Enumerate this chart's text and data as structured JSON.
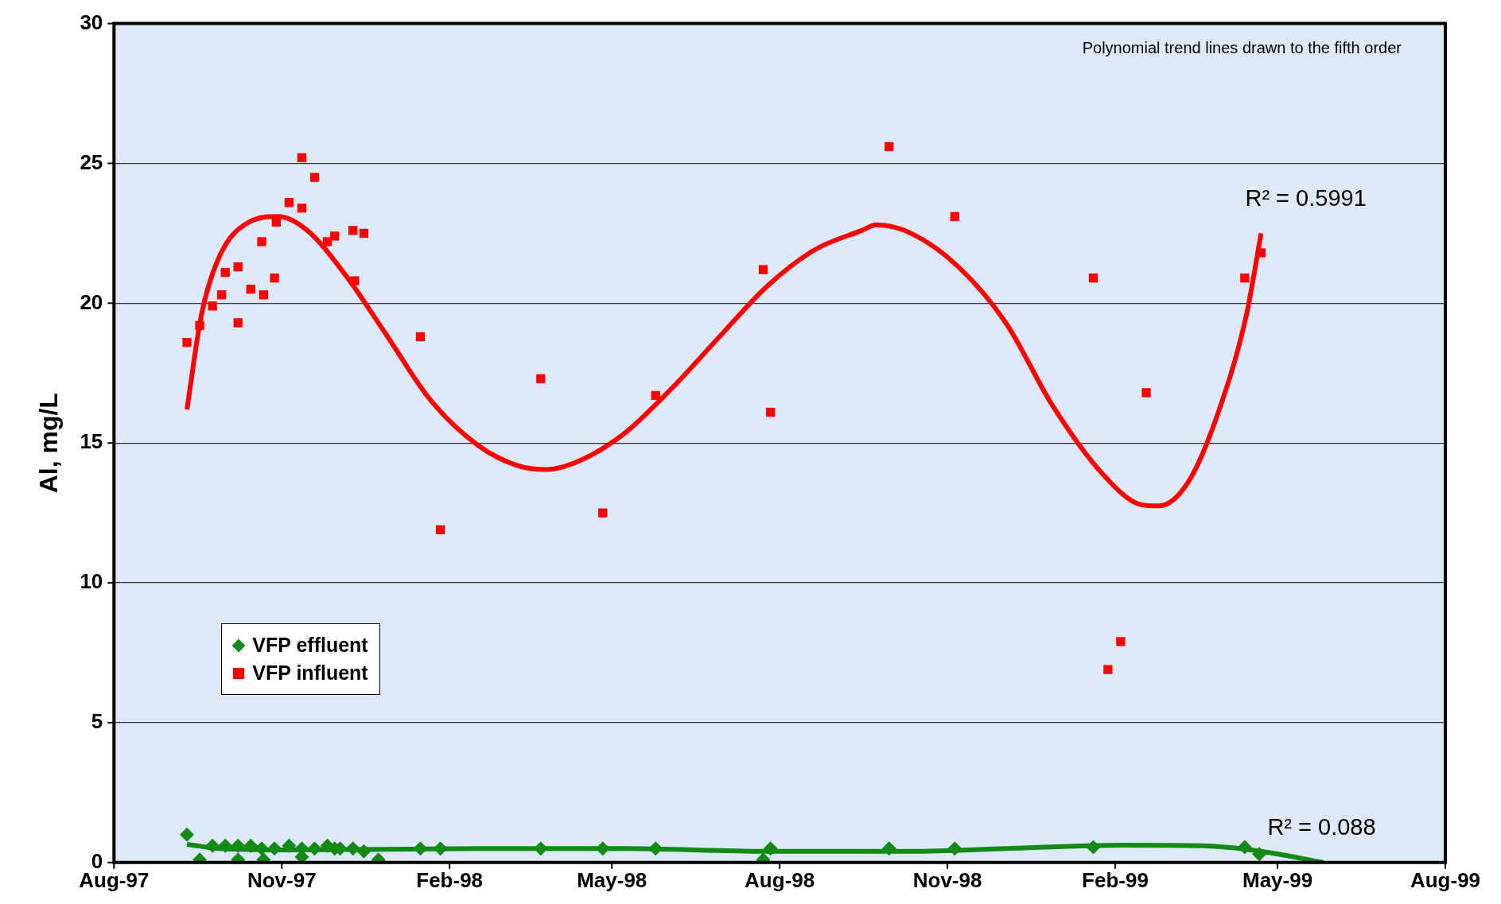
{
  "chart_data": {
    "type": "scatter",
    "ylabel": "Al, mg/L",
    "annotations": [
      "Polynomial trend lines drawn to the fifth order",
      "R² = 0.5991",
      "R² = 0.088"
    ],
    "xlim": [
      "1997-08-01",
      "1999-08-01"
    ],
    "xticks": [
      {
        "value": "1997-08-01",
        "label": "Aug-97"
      },
      {
        "value": "1997-11-01",
        "label": "Nov-97"
      },
      {
        "value": "1998-02-01",
        "label": "Feb-98"
      },
      {
        "value": "1998-05-01",
        "label": "May-98"
      },
      {
        "value": "1998-08-01",
        "label": "Aug-98"
      },
      {
        "value": "1998-11-01",
        "label": "Nov-98"
      },
      {
        "value": "1999-02-01",
        "label": "Feb-99"
      },
      {
        "value": "1999-05-01",
        "label": "May-99"
      },
      {
        "value": "1999-08-01",
        "label": "Aug-99"
      }
    ],
    "ylim": [
      0,
      30
    ],
    "yticks": [
      0,
      5,
      10,
      15,
      20,
      25,
      30
    ],
    "grid": "y",
    "legend": "left",
    "series": [
      {
        "name": "VFP effluent",
        "marker": "diamond",
        "color": "#138a13",
        "x": [
          "1997-09-10",
          "1997-09-17",
          "1997-09-24",
          "1997-09-29",
          "1997-10-01",
          "1997-10-08",
          "1997-10-08",
          "1997-10-15",
          "1997-10-21",
          "1997-10-22",
          "1997-10-28",
          "1997-11-05",
          "1997-11-12",
          "1997-11-12",
          "1997-11-19",
          "1997-11-26",
          "1997-11-30",
          "1997-12-03",
          "1997-12-10",
          "1997-12-16",
          "1997-12-24",
          "1998-01-16",
          "1998-01-27",
          "1998-03-23",
          "1998-04-26",
          "1998-05-25",
          "1998-07-23",
          "1998-07-27",
          "1998-09-30",
          "1998-11-05",
          "1999-01-20",
          "1999-04-13",
          "1999-04-21"
        ],
        "values": [
          1.0,
          0.1,
          0.6,
          null,
          0.6,
          0.1,
          0.6,
          0.6,
          0.5,
          0.1,
          0.5,
          0.6,
          0.5,
          0.2,
          0.5,
          0.6,
          0.5,
          0.5,
          0.5,
          0.4,
          0.1,
          0.5,
          0.5,
          0.5,
          0.5,
          0.5,
          0.1,
          0.5,
          0.5,
          0.5,
          0.55,
          0.55,
          0.3
        ]
      },
      {
        "name": "VFP influent",
        "marker": "square",
        "color": "#ff0000",
        "x": [
          "1997-09-10",
          "1997-09-17",
          "1997-09-24",
          "1997-09-29",
          "1997-10-01",
          "1997-10-08",
          "1997-10-08",
          "1997-10-15",
          "1997-10-21",
          "1997-10-22",
          "1997-10-28",
          "1997-10-29",
          "1997-11-05",
          "1997-11-12",
          "1997-11-12",
          "1997-11-19",
          "1997-11-26",
          "1997-11-30",
          "1997-12-10",
          "1997-12-11",
          "1997-12-16",
          "1998-01-16",
          "1998-01-27",
          "1998-03-23",
          "1998-04-26",
          "1998-05-25",
          "1998-07-23",
          "1998-07-27",
          "1998-09-30",
          "1998-11-05",
          "1999-01-20",
          "1999-01-28",
          "1999-02-04",
          "1999-02-18",
          "1999-04-13",
          "1999-04-22"
        ],
        "values": [
          18.6,
          19.2,
          19.9,
          20.3,
          21.1,
          21.3,
          19.3,
          20.5,
          22.2,
          20.3,
          20.9,
          22.9,
          23.6,
          23.4,
          25.2,
          24.5,
          22.2,
          22.4,
          22.6,
          20.8,
          22.5,
          18.8,
          11.9,
          17.3,
          12.5,
          16.7,
          21.2,
          16.1,
          25.6,
          23.1,
          20.9,
          6.9,
          7.9,
          16.8,
          20.9,
          21.8
        ]
      },
      {
        "type": "line",
        "marker": "none",
        "color": "#ff0000",
        "x": [
          "1997-09-10",
          "1997-09-18",
          "1997-09-28",
          "1997-10-14",
          "1997-10-30",
          "1997-11-15",
          "1997-12-06",
          "1997-12-27",
          "1998-01-22",
          "1998-02-17",
          "1998-03-10",
          "1998-03-26",
          "1998-04-11",
          "1998-05-07",
          "1998-06-02",
          "1998-06-29",
          "1998-07-25",
          "1998-08-20",
          "1998-09-15",
          "1998-09-23",
          "1998-10-12",
          "1998-11-07",
          "1998-12-03",
          "1998-12-29",
          "1999-01-25",
          "1999-02-15",
          "1999-02-25",
          "1999-03-13",
          "1999-03-29",
          "1999-04-14",
          "1999-04-22"
        ],
        "values": [
          16.2,
          19.6,
          21.7,
          22.9,
          23.1,
          22.6,
          21.0,
          19.0,
          16.5,
          14.9,
          14.2,
          14.05,
          14.3,
          15.3,
          16.9,
          18.8,
          20.6,
          21.9,
          22.6,
          22.8,
          22.5,
          21.3,
          19.3,
          16.3,
          13.9,
          12.8,
          12.75,
          13.6,
          16.0,
          19.6,
          22.5
        ]
      },
      {
        "type": "line",
        "marker": "none",
        "color": "#138a13",
        "x": [
          "1997-09-10",
          "1997-09-28",
          "1997-11-05",
          "1998-02-17",
          "1998-05-07",
          "1998-07-25",
          "1998-10-12",
          "1998-12-03",
          "1999-02-05",
          "1999-03-20",
          "1999-04-22",
          "1999-05-26"
        ],
        "values": [
          0.65,
          0.5,
          0.45,
          0.5,
          0.5,
          0.4,
          0.4,
          0.5,
          0.62,
          0.6,
          0.4,
          0.0
        ]
      }
    ]
  }
}
